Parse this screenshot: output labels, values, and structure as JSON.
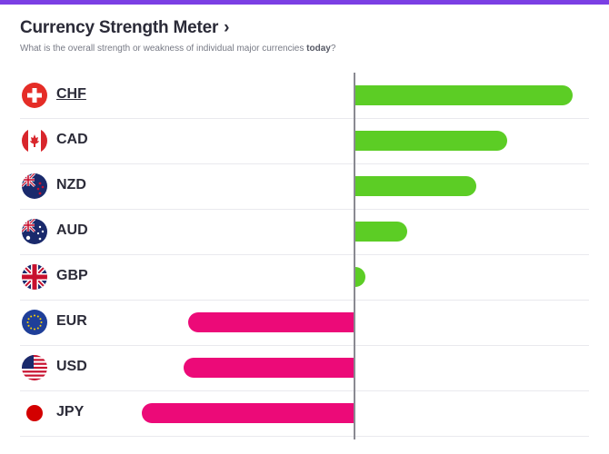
{
  "header": {
    "title": "Currency Strength Meter",
    "subtitle_prefix": "What is the overall strength or weakness of individual major currencies ",
    "subtitle_bold": "today",
    "subtitle_suffix": "?"
  },
  "chart_data": {
    "type": "bar",
    "categories": [
      "CHF",
      "CAD",
      "NZD",
      "AUD",
      "GBP",
      "EUR",
      "USD",
      "JPY"
    ],
    "values": [
      100,
      70,
      56,
      24,
      5,
      -76,
      -78,
      -97
    ],
    "colors": {
      "positive": "#5ccd25",
      "negative": "#ec0a78",
      "axis": "#8a8a92"
    },
    "flags": [
      "switzerland-flag",
      "canada-flag",
      "new-zealand-flag",
      "australia-flag",
      "uk-flag",
      "eu-flag",
      "usa-flag",
      "japan-flag"
    ]
  }
}
